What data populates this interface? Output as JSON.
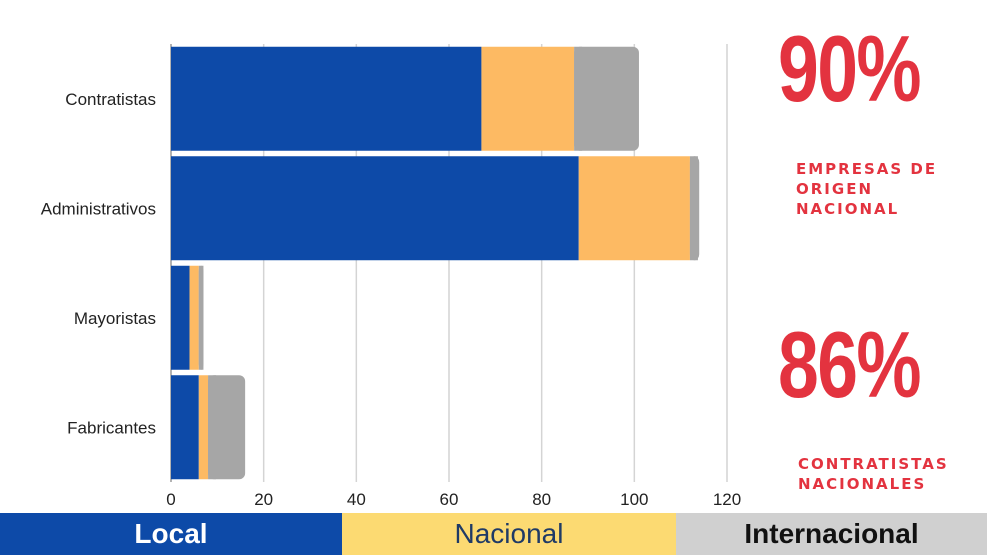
{
  "chart_data": {
    "type": "bar",
    "orientation": "horizontal",
    "stacked": true,
    "categories": [
      "Contratistas",
      "Administrativos",
      "Mayoristas",
      "Fabricantes"
    ],
    "series": [
      {
        "name": "Local",
        "color": "#0d4aa8",
        "values": [
          67,
          88,
          4,
          6
        ]
      },
      {
        "name": "Nacional",
        "color": "#fdba63",
        "values": [
          20,
          24,
          2,
          2
        ]
      },
      {
        "name": "Internacional",
        "color": "#a6a6a6",
        "values": [
          14,
          2,
          1,
          8
        ]
      }
    ],
    "xlim": [
      0,
      120
    ],
    "xticks": [
      "0",
      "20",
      "40",
      "60",
      "80",
      "100",
      "120"
    ],
    "grid": true,
    "legend_position": "bottom"
  },
  "stats": [
    {
      "value": "90%",
      "caption": [
        "EMPRESAS DE",
        "ORIGEN",
        "NACIONAL"
      ]
    },
    {
      "value": "86%",
      "caption": [
        "CONTRATISTAS",
        "NACIONALES"
      ]
    }
  ],
  "legend": [
    {
      "label": "Local",
      "bg": "#0d4aa8",
      "fg": "#ffffff",
      "bold": true
    },
    {
      "label": "Nacional",
      "bg": "#fcda72",
      "fg": "#1f3a66",
      "bold": false
    },
    {
      "label": "Internacional",
      "bg": "#d0d0d0",
      "fg": "#111111",
      "bold": true
    }
  ]
}
